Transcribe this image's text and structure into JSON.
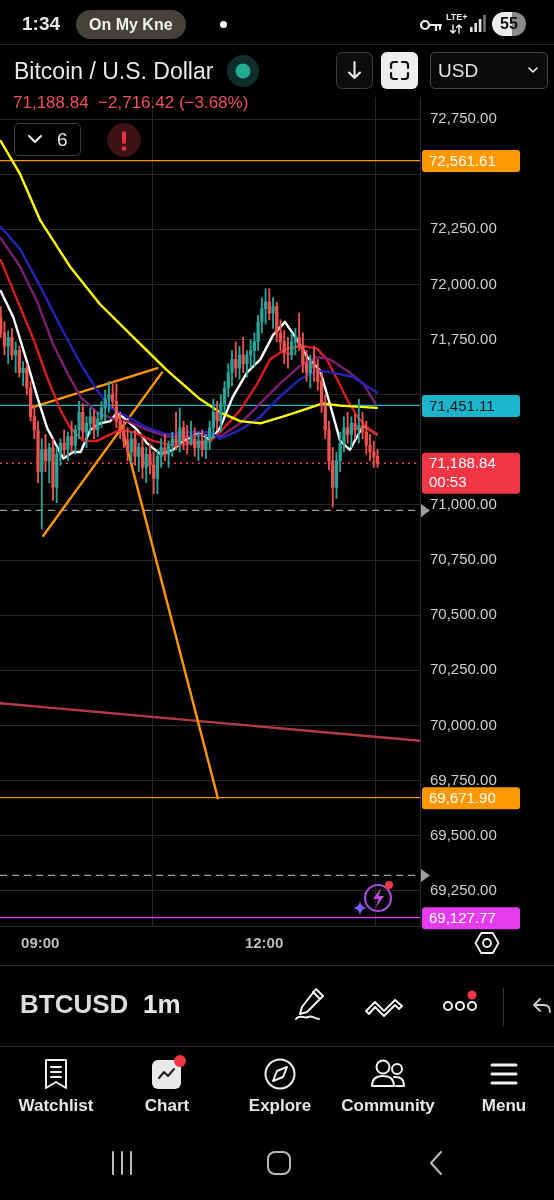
{
  "chart_data": {
    "type": "candlestick",
    "title": "Bitcoin / U.S. Dollar",
    "subtitle": "71,188.84  −2,716.42 (−3.68%)",
    "xlim": [
      8.46,
      14.09
    ],
    "xticks": [
      {
        "value": 9,
        "label": "09:00"
      },
      {
        "value": 12,
        "label": "12:00"
      }
    ],
    "ylim": [
      69090,
      72850
    ],
    "yticks": [
      {
        "value": 69250,
        "label": "69,250.00"
      },
      {
        "value": 69500,
        "label": "69,500.00"
      },
      {
        "value": 69750,
        "label": "69,750.00"
      },
      {
        "value": 70000,
        "label": "70,000.00"
      },
      {
        "value": 70250,
        "label": "70,250.00"
      },
      {
        "value": 70500,
        "label": "70,500.00"
      },
      {
        "value": 70750,
        "label": "70,750.00"
      },
      {
        "value": 71000,
        "label": "71,000.00"
      },
      {
        "value": 71250,
        "label": null
      },
      {
        "value": 71500,
        "label": null
      },
      {
        "value": 71750,
        "label": "71,750.00"
      },
      {
        "value": 72000,
        "label": "72,000.00"
      },
      {
        "value": 72250,
        "label": "72,250.00"
      },
      {
        "value": 72500,
        "label": null
      },
      {
        "value": 72750,
        "label": "72,750.00"
      }
    ],
    "grid": true,
    "series": [
      {
        "x": [
          8.47,
          8.52,
          8.57,
          8.62,
          8.67,
          8.72,
          8.77,
          8.82,
          8.87,
          8.92,
          8.97,
          9.02,
          9.07,
          9.12,
          9.17,
          9.22,
          9.27,
          9.32,
          9.37,
          9.42,
          9.47,
          9.52,
          9.57,
          9.62,
          9.67,
          9.72,
          9.77,
          9.82,
          9.87,
          9.92,
          9.97,
          10.02,
          10.07,
          10.12,
          10.17,
          10.22,
          10.27,
          10.32,
          10.37,
          10.42,
          10.47,
          10.52,
          10.57,
          10.62,
          10.67,
          10.72,
          10.77,
          10.82,
          10.87,
          10.92,
          10.97,
          11.02,
          11.07,
          11.12,
          11.17,
          11.22,
          11.27,
          11.32,
          11.37,
          11.42,
          11.47,
          11.52,
          11.57,
          11.62,
          11.67,
          11.72,
          11.77,
          11.82,
          11.87,
          11.92,
          11.97,
          12.02,
          12.07,
          12.12,
          12.17,
          12.22,
          12.27,
          12.32,
          12.37,
          12.42,
          12.47,
          12.52,
          12.57,
          12.62,
          12.67,
          12.72,
          12.77,
          12.82,
          12.87,
          12.92,
          12.97,
          13.02,
          13.07,
          13.12,
          13.17,
          13.22,
          13.27,
          13.32,
          13.37,
          13.42,
          13.47,
          13.52
        ],
        "ohlc": [
          [
            71850,
            71900,
            71760,
            71780
          ],
          [
            71780,
            71830,
            71680,
            71720
          ],
          [
            71720,
            71790,
            71640,
            71760
          ],
          [
            71760,
            71800,
            71660,
            71680
          ],
          [
            71680,
            71740,
            71600,
            71700
          ],
          [
            71700,
            71720,
            71580,
            71600
          ],
          [
            71600,
            71650,
            71540,
            71620
          ],
          [
            71620,
            71640,
            71500,
            71530
          ],
          [
            71530,
            71560,
            71380,
            71400
          ],
          [
            71400,
            71450,
            71300,
            71340
          ],
          [
            71340,
            71380,
            71100,
            71150
          ],
          [
            71150,
            71300,
            70890,
            71250
          ],
          [
            71250,
            71320,
            71150,
            71200
          ],
          [
            71200,
            71280,
            71100,
            71260
          ],
          [
            71260,
            71300,
            71020,
            71080
          ],
          [
            71080,
            71260,
            71010,
            71230
          ],
          [
            71230,
            71300,
            71180,
            71280
          ],
          [
            71280,
            71340,
            71220,
            71250
          ],
          [
            71250,
            71330,
            71200,
            71310
          ],
          [
            71310,
            71380,
            71240,
            71270
          ],
          [
            71270,
            71360,
            71230,
            71340
          ],
          [
            71340,
            71470,
            71300,
            71420
          ],
          [
            71420,
            71460,
            71300,
            71330
          ],
          [
            71330,
            71400,
            71260,
            71370
          ],
          [
            71370,
            71440,
            71320,
            71400
          ],
          [
            71400,
            71430,
            71300,
            71340
          ],
          [
            71340,
            71420,
            71310,
            71390
          ],
          [
            71390,
            71470,
            71350,
            71440
          ],
          [
            71440,
            71520,
            71380,
            71480
          ],
          [
            71480,
            71560,
            71420,
            71500
          ],
          [
            71500,
            71560,
            71440,
            71470
          ],
          [
            71470,
            71550,
            71350,
            71380
          ],
          [
            71380,
            71420,
            71300,
            71330
          ],
          [
            71330,
            71380,
            71260,
            71290
          ],
          [
            71290,
            71350,
            71200,
            71240
          ],
          [
            71240,
            71330,
            71190,
            71300
          ],
          [
            71300,
            71340,
            71180,
            71220
          ],
          [
            71220,
            71280,
            71150,
            71260
          ],
          [
            71260,
            71300,
            71120,
            71170
          ],
          [
            71170,
            71260,
            71100,
            71230
          ],
          [
            71230,
            71280,
            71140,
            71180
          ],
          [
            71180,
            71240,
            71050,
            71120
          ],
          [
            71120,
            71250,
            71050,
            71220
          ],
          [
            71220,
            71300,
            71170,
            71260
          ],
          [
            71260,
            71320,
            71200,
            71230
          ],
          [
            71230,
            71290,
            71170,
            71270
          ],
          [
            71270,
            71330,
            71220,
            71300
          ],
          [
            71300,
            71420,
            71250,
            71280
          ],
          [
            71280,
            71440,
            71240,
            71350
          ],
          [
            71350,
            71380,
            71250,
            71290
          ],
          [
            71290,
            71360,
            71230,
            71280
          ],
          [
            71280,
            71380,
            71270,
            71300
          ],
          [
            71300,
            71350,
            71220,
            71260
          ],
          [
            71260,
            71330,
            71200,
            71290
          ],
          [
            71290,
            71340,
            71220,
            71250
          ],
          [
            71250,
            71320,
            71210,
            71300
          ],
          [
            71300,
            71380,
            71250,
            71350
          ],
          [
            71350,
            71480,
            71300,
            71420
          ],
          [
            71420,
            71470,
            71340,
            71380
          ],
          [
            71380,
            71500,
            71330,
            71460
          ],
          [
            71460,
            71560,
            71420,
            71530
          ],
          [
            71530,
            71640,
            71490,
            71600
          ],
          [
            71600,
            71700,
            71540,
            71660
          ],
          [
            71660,
            71740,
            71580,
            71620
          ],
          [
            71620,
            71720,
            71570,
            71680
          ],
          [
            71680,
            71760,
            71600,
            71640
          ],
          [
            71640,
            71700,
            71580,
            71680
          ],
          [
            71680,
            71750,
            71620,
            71700
          ],
          [
            71700,
            71780,
            71630,
            71740
          ],
          [
            71740,
            71860,
            71700,
            71830
          ],
          [
            71830,
            71940,
            71780,
            71890
          ],
          [
            71890,
            71980,
            71820,
            71920
          ],
          [
            71920,
            71980,
            71840,
            71870
          ],
          [
            71870,
            71940,
            71800,
            71900
          ],
          [
            71900,
            71920,
            71740,
            71780
          ],
          [
            71780,
            71840,
            71700,
            71740
          ],
          [
            71740,
            71790,
            71640,
            71690
          ],
          [
            71690,
            71760,
            71620,
            71680
          ],
          [
            71680,
            71780,
            71660,
            71740
          ],
          [
            71740,
            71800,
            71680,
            71760
          ],
          [
            71760,
            71870,
            71700,
            71720
          ],
          [
            71720,
            71780,
            71600,
            71640
          ],
          [
            71640,
            71700,
            71560,
            71600
          ],
          [
            71600,
            71680,
            71530,
            71650
          ],
          [
            71650,
            71720,
            71560,
            71620
          ],
          [
            71620,
            71660,
            71520,
            71560
          ],
          [
            71560,
            71600,
            71420,
            71450
          ],
          [
            71450,
            71500,
            71300,
            71340
          ],
          [
            71340,
            71380,
            71160,
            71200
          ],
          [
            71200,
            71260,
            70990,
            71080
          ],
          [
            71080,
            71240,
            71030,
            71200
          ],
          [
            71200,
            71330,
            71150,
            71280
          ],
          [
            71280,
            71400,
            71240,
            71350
          ],
          [
            71350,
            71420,
            71280,
            71320
          ],
          [
            71320,
            71400,
            71260,
            71370
          ],
          [
            71370,
            71410,
            71300,
            71340
          ],
          [
            71340,
            71480,
            71280,
            71360
          ],
          [
            71360,
            71420,
            71300,
            71330
          ],
          [
            71330,
            71380,
            71230,
            71270
          ],
          [
            71270,
            71320,
            71200,
            71240
          ],
          [
            71240,
            71290,
            71170,
            71220
          ],
          [
            71220,
            71250,
            71170,
            71188.84
          ]
        ],
        "colors": [
          "#ef5350",
          "#ef5350",
          "#26a69a",
          "#ef5350",
          "#26a69a",
          "#ef5350",
          "#26a69a",
          "#ef5350",
          "#ef5350",
          "#ef5350",
          "#ef5350",
          "#26a69a",
          "#ef5350",
          "#26a69a",
          "#ef5350",
          "#26a69a",
          "#26a69a",
          "#ef5350",
          "#26a69a",
          "#ef5350",
          "#26a69a",
          "#26a69a",
          "#ef5350",
          "#26a69a",
          "#26a69a",
          "#ef5350",
          "#26a69a",
          "#26a69a",
          "#26a69a",
          "#26a69a",
          "#ef5350",
          "#ef5350",
          "#ef5350",
          "#ef5350",
          "#ef5350",
          "#26a69a",
          "#ef5350",
          "#26a69a",
          "#ef5350",
          "#26a69a",
          "#ef5350",
          "#ef5350",
          "#26a69a",
          "#26a69a",
          "#ef5350",
          "#26a69a",
          "#26a69a",
          "#ef5350",
          "#26a69a",
          "#ef5350",
          "#ef5350",
          "#26a69a",
          "#ef5350",
          "#26a69a",
          "#ef5350",
          "#26a69a",
          "#26a69a",
          "#26a69a",
          "#ef5350",
          "#26a69a",
          "#26a69a",
          "#26a69a",
          "#26a69a",
          "#ef5350",
          "#26a69a",
          "#ef5350",
          "#26a69a",
          "#26a69a",
          "#26a69a",
          "#26a69a",
          "#26a69a",
          "#26a69a",
          "#ef5350",
          "#26a69a",
          "#ef5350",
          "#ef5350",
          "#ef5350",
          "#ef5350",
          "#26a69a",
          "#26a69a",
          "#ef5350",
          "#ef5350",
          "#ef5350",
          "#26a69a",
          "#ef5350",
          "#ef5350",
          "#ef5350",
          "#ef5350",
          "#ef5350",
          "#ef5350",
          "#26a69a",
          "#26a69a",
          "#26a69a",
          "#ef5350",
          "#26a69a",
          "#ef5350",
          "#26a69a",
          "#ef5350",
          "#ef5350",
          "#ef5350",
          "#ef5350",
          "#ef5350"
        ]
      },
      {
        "type": "line",
        "color": "#ffff00",
        "x": [
          8.47,
          8.73,
          9.0,
          9.4,
          9.8,
          10.25,
          10.7,
          11.14,
          11.41,
          11.68,
          11.95,
          12.25,
          12.52,
          12.79,
          13.02,
          13.51
        ],
        "values": [
          72650,
          72500,
          72290,
          72080,
          71910,
          71760,
          71610,
          71480,
          71420,
          71380,
          71370,
          71400,
          71430,
          71460,
          71450,
          71440
        ]
      },
      {
        "type": "line",
        "color": "#2323b4",
        "x": [
          8.47,
          8.73,
          9.0,
          9.27,
          9.54,
          9.76,
          9.94,
          10.17,
          10.43,
          10.7,
          11.01,
          11.28,
          11.41,
          11.68,
          11.95,
          12.21,
          12.48,
          12.71,
          12.92,
          13.19,
          13.51
        ],
        "values": [
          72260,
          72160,
          71990,
          71810,
          71640,
          71520,
          71440,
          71400,
          71350,
          71320,
          71330,
          71330,
          71300,
          71340,
          71400,
          71490,
          71570,
          71610,
          71600,
          71580,
          71510
        ]
      },
      {
        "type": "line",
        "color": "#7a1f72",
        "x": [
          8.47,
          8.73,
          8.96,
          9.17,
          9.36,
          9.54,
          9.76,
          9.98,
          10.17,
          10.43,
          10.7,
          10.97,
          11.28,
          11.41,
          11.68,
          11.95,
          12.21,
          12.48,
          12.71,
          12.88,
          13.11,
          13.33,
          13.49
        ],
        "values": [
          72210,
          72080,
          71920,
          71730,
          71600,
          71490,
          71420,
          71390,
          71380,
          71340,
          71310,
          71310,
          71320,
          71310,
          71370,
          71460,
          71550,
          71630,
          71670,
          71660,
          71610,
          71550,
          71460
        ]
      },
      {
        "type": "line",
        "color": "#d61e1e",
        "x": [
          8.47,
          8.69,
          8.91,
          9.09,
          9.27,
          9.4,
          9.58,
          9.76,
          9.94,
          10.07,
          10.25,
          10.51,
          10.78,
          11.05,
          11.28,
          11.41,
          11.68,
          11.91,
          12.08,
          12.31,
          12.52,
          12.71,
          12.84,
          12.98,
          13.11,
          13.25,
          13.38,
          13.51
        ],
        "values": [
          72110,
          71930,
          71750,
          71580,
          71430,
          71350,
          71290,
          71290,
          71320,
          71340,
          71330,
          71290,
          71270,
          71280,
          71290,
          71330,
          71430,
          71550,
          71660,
          71710,
          71720,
          71710,
          71660,
          71570,
          71480,
          71400,
          71350,
          71320
        ]
      },
      {
        "type": "line",
        "color": "#ffffff",
        "x": [
          8.47,
          8.64,
          8.83,
          8.96,
          9.09,
          9.23,
          9.31,
          9.44,
          9.54,
          9.67,
          9.8,
          9.94,
          10.03,
          10.17,
          10.3,
          10.43,
          10.61,
          10.78,
          10.92,
          11.14,
          11.28,
          11.41,
          11.58,
          11.77,
          11.95,
          12.12,
          12.28,
          12.44,
          12.58,
          12.75,
          12.88,
          13.02,
          13.15,
          13.33,
          13.51
        ],
        "values": [
          71970,
          71850,
          71640,
          71490,
          71350,
          71260,
          71210,
          71240,
          71240,
          71340,
          71370,
          71380,
          71420,
          71380,
          71340,
          71280,
          71230,
          71250,
          71290,
          71330,
          71290,
          71350,
          71490,
          71600,
          71660,
          71770,
          71830,
          71750,
          71670,
          71610,
          71460,
          71290,
          71250,
          71360,
          71320
        ]
      },
      {
        "type": "line",
        "color": "#ff9800",
        "x": [
          8.87,
          10.57
        ],
        "values": [
          71440,
          71620
        ]
      },
      {
        "type": "line",
        "color": "#ff9800",
        "x": [
          9.04,
          10.63
        ],
        "values": [
          70860,
          71600
        ]
      },
      {
        "type": "line",
        "color": "#ff9800",
        "x": [
          10.04,
          11.38
        ],
        "values": [
          71420,
          69670
        ]
      },
      {
        "type": "line",
        "color": "#b23a48",
        "x": [
          8.46,
          14.09
        ],
        "values": [
          70100,
          69930
        ]
      }
    ],
    "ref_lines": [
      {
        "axis": "y",
        "value": 72561.61,
        "label": "72,561.61",
        "color": "#ff9800"
      },
      {
        "axis": "y",
        "value": 71451.11,
        "label": "71,451.11",
        "color": "#1cb5cc"
      },
      {
        "axis": "y",
        "value": 71188.84,
        "label": "71,188.84\n00:53",
        "color": "#f23645",
        "line_style": "dotted"
      },
      {
        "axis": "y",
        "value": 70975,
        "color": "#9e9e9e",
        "line_style": "dashed"
      },
      {
        "axis": "y",
        "value": 69671.9,
        "label": "69,671.90",
        "color": "#ff9800"
      },
      {
        "axis": "y",
        "value": 69320,
        "color": "#9e9e9e",
        "line_style": "dashed"
      },
      {
        "axis": "y",
        "value": 69127.77,
        "label": "69,127.77",
        "color": "#e63cf0"
      }
    ],
    "annotations": [
      "1:34",
      "On My Kne",
      "LTE+",
      "55",
      "USD",
      "6",
      "BTCUSD",
      "1m",
      "Watchlist",
      "Chart",
      "Explore",
      "Community",
      "Menu"
    ]
  }
}
